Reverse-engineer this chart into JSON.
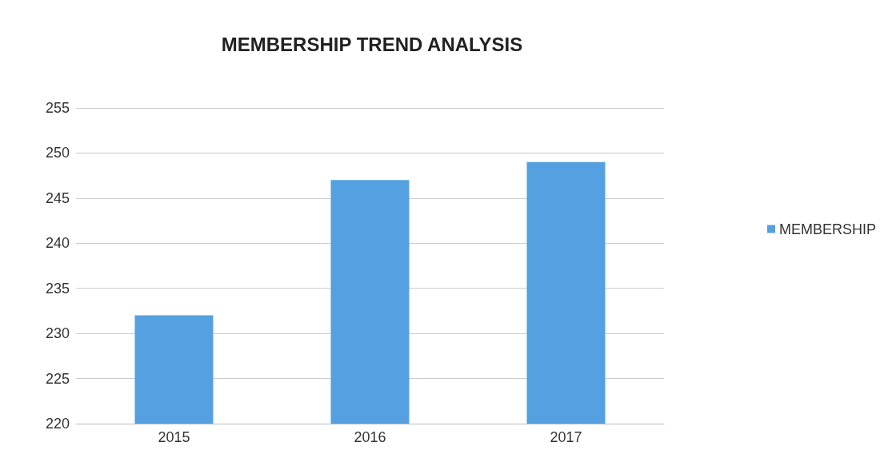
{
  "chart_data": {
    "type": "bar",
    "title": "MEMBERSHIP TREND ANALYSIS",
    "categories": [
      "2015",
      "2016",
      "2017"
    ],
    "series": [
      {
        "name": "MEMBERSHIP",
        "color": "#55a0e0",
        "values": [
          232,
          247,
          249
        ]
      }
    ],
    "ylim": [
      220,
      255
    ],
    "yticks": [
      220,
      225,
      230,
      235,
      240,
      245,
      250,
      255
    ],
    "grid": "y",
    "legend": "right"
  }
}
